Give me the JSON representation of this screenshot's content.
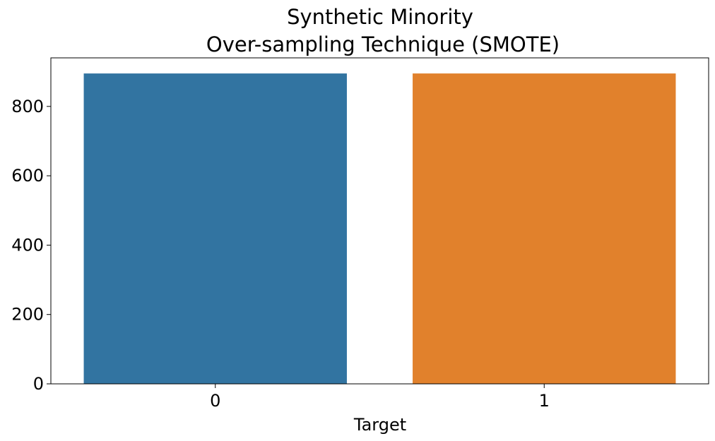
{
  "chart_data": {
    "type": "bar",
    "title_lines": [
      "Synthetic Minority",
      "Over-sampling Technique (SMOTE)"
    ],
    "xlabel": "Target",
    "ylabel": "",
    "categories": [
      "0",
      "1"
    ],
    "values": [
      895,
      895
    ],
    "colors": [
      "#3274a1",
      "#e1812c"
    ],
    "ylim": [
      0,
      940
    ],
    "yticks": [
      0,
      200,
      400,
      600,
      800
    ],
    "grid": false
  }
}
